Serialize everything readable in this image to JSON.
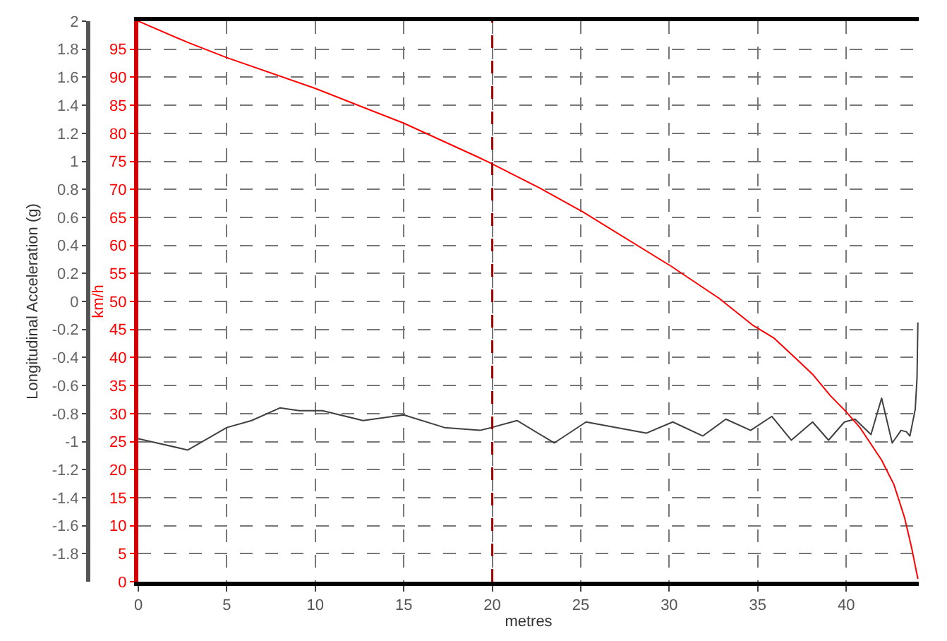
{
  "chart_data": {
    "type": "line",
    "xlabel": "metres",
    "ylabel": "Longitudinal Acceleration (g)",
    "y2label": "km/h",
    "xlim": [
      0,
      44.1
    ],
    "xticks": [
      0,
      5,
      10,
      15,
      20,
      25,
      30,
      35,
      40
    ],
    "ylim": [
      -2,
      2
    ],
    "yticks": [
      -1.8,
      -1.6,
      -1.4,
      -1.2,
      -1,
      -0.8,
      -0.6,
      -0.4,
      -0.2,
      0,
      0.2,
      0.4,
      0.6,
      0.8,
      1,
      1.2,
      1.4,
      1.6,
      1.8,
      2
    ],
    "y2lim": [
      0,
      100
    ],
    "y2ticks": [
      0,
      5,
      10,
      15,
      20,
      25,
      30,
      35,
      40,
      45,
      50,
      55,
      60,
      65,
      70,
      75,
      80,
      85,
      90,
      95
    ],
    "grid": true,
    "ref_lines": [
      {
        "axis": "x",
        "value": 20,
        "color": "#a00000",
        "line_style": "dashed"
      }
    ],
    "series": [
      {
        "color": "#404040",
        "axis": "y",
        "x": [
          0,
          2.8,
          5,
          6.4,
          8,
          9.1,
          10.4,
          12.7,
          15,
          17.3,
          19.3,
          19.95,
          21.4,
          23.5,
          25.3,
          28.7,
          30.2,
          31.9,
          33.2,
          34.6,
          35.8,
          36.9,
          38.1,
          39,
          39.9,
          40.5,
          41.4,
          42,
          42.6,
          43.1,
          43.4,
          43.6,
          43.9,
          44,
          44.05
        ],
        "values": [
          -0.98,
          -1.06,
          -0.9,
          -0.85,
          -0.76,
          -0.78,
          -0.78,
          -0.85,
          -0.81,
          -0.9,
          -0.92,
          -0.9,
          -0.85,
          -1.01,
          -0.86,
          -0.94,
          -0.86,
          -0.96,
          -0.84,
          -0.92,
          -0.82,
          -0.99,
          -0.86,
          -0.99,
          -0.86,
          -0.84,
          -0.95,
          -0.69,
          -1.01,
          -0.92,
          -0.93,
          -0.96,
          -0.77,
          -0.55,
          -0.15
        ]
      },
      {
        "color": "#ff0000",
        "axis": "y2",
        "x": [
          0,
          2.8,
          5,
          10,
          15,
          19.3,
          19.95,
          22.7,
          25.1,
          30.1,
          32.8,
          34.7,
          35.9,
          37.1,
          38.1,
          39.1,
          40,
          40.8,
          42,
          42.7,
          43.3,
          43.7,
          44,
          44.05
        ],
        "values": [
          100,
          96.2,
          93.5,
          88,
          81.8,
          75.6,
          74.6,
          70.2,
          66,
          56.3,
          50.6,
          45.8,
          43.5,
          40,
          37,
          33.2,
          30.3,
          27.4,
          21.7,
          17.3,
          11.4,
          6,
          1.3,
          0.5
        ]
      }
    ]
  }
}
